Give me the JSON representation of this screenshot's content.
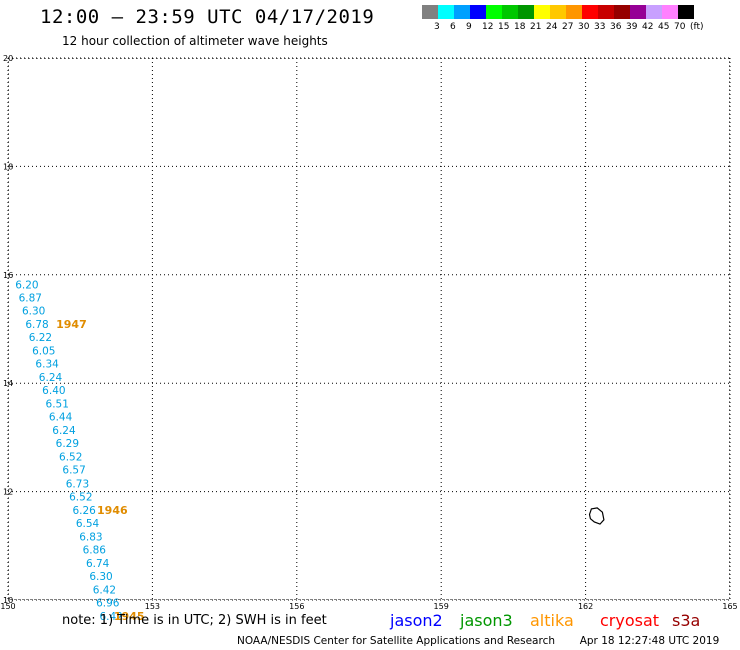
{
  "header": {
    "title": "12:00 – 23:59 UTC 04/17/2019",
    "subtitle": "12 hour collection of altimeter wave heights"
  },
  "color_scale": {
    "colors": [
      "#808080",
      "#00ffff",
      "#00a0ff",
      "#0000ff",
      "#00ff00",
      "#00c800",
      "#009600",
      "#ffff00",
      "#ffc800",
      "#ff9600",
      "#ff0000",
      "#c80000",
      "#960000",
      "#960096",
      "#c8a0ff",
      "#ff80ff",
      "#000000"
    ],
    "labels": [
      "3",
      "6",
      "9",
      "12",
      "15",
      "18",
      "21",
      "24",
      "27",
      "30",
      "33",
      "36",
      "39",
      "42",
      "45",
      "70",
      "(ft)"
    ]
  },
  "chart_data": {
    "type": "scatter",
    "x_ticks": [
      "150",
      "153",
      "156",
      "159",
      "162",
      "165"
    ],
    "y_ticks": [
      "10",
      "12",
      "14",
      "16",
      "18",
      "20"
    ],
    "xlim": [
      150,
      165
    ],
    "ylim": [
      10,
      20
    ],
    "grid": true,
    "swh_points": [
      {
        "label": "6.20",
        "lon": 150.15,
        "lat": 15.75
      },
      {
        "label": "6.87",
        "lon": 150.22,
        "lat": 15.51
      },
      {
        "label": "6.30",
        "lon": 150.29,
        "lat": 15.27
      },
      {
        "label": "6.78",
        "lon": 150.36,
        "lat": 15.02
      },
      {
        "label": "6.22",
        "lon": 150.43,
        "lat": 14.78
      },
      {
        "label": "6.05",
        "lon": 150.5,
        "lat": 14.53
      },
      {
        "label": "6.34",
        "lon": 150.57,
        "lat": 14.29
      },
      {
        "label": "6.24",
        "lon": 150.64,
        "lat": 14.04
      },
      {
        "label": "6.40",
        "lon": 150.71,
        "lat": 13.8
      },
      {
        "label": "6.51",
        "lon": 150.78,
        "lat": 13.55
      },
      {
        "label": "6.44",
        "lon": 150.85,
        "lat": 13.31
      },
      {
        "label": "6.24",
        "lon": 150.92,
        "lat": 13.06
      },
      {
        "label": "6.29",
        "lon": 150.99,
        "lat": 12.82
      },
      {
        "label": "6.52",
        "lon": 151.06,
        "lat": 12.57
      },
      {
        "label": "6.57",
        "lon": 151.13,
        "lat": 12.33
      },
      {
        "label": "6.73",
        "lon": 151.2,
        "lat": 12.08
      },
      {
        "label": "6.52",
        "lon": 151.27,
        "lat": 11.84
      },
      {
        "label": "6.26",
        "lon": 151.34,
        "lat": 11.59
      },
      {
        "label": "6.54",
        "lon": 151.41,
        "lat": 11.35
      },
      {
        "label": "6.83",
        "lon": 151.48,
        "lat": 11.1
      },
      {
        "label": "6.86",
        "lon": 151.55,
        "lat": 10.86
      },
      {
        "label": "6.74",
        "lon": 151.62,
        "lat": 10.61
      },
      {
        "label": "6.30",
        "lon": 151.69,
        "lat": 10.37
      },
      {
        "label": "6.42",
        "lon": 151.76,
        "lat": 10.12
      },
      {
        "label": "6.96",
        "lon": 151.83,
        "lat": 9.88
      },
      {
        "label": "6.42",
        "lon": 151.9,
        "lat": 9.63
      }
    ],
    "time_labels": [
      {
        "label": "1947",
        "lon": 151.0,
        "lat": 15.02
      },
      {
        "label": "1946",
        "lon": 151.85,
        "lat": 11.59
      },
      {
        "label": "1945",
        "lon": 152.2,
        "lat": 9.63
      }
    ],
    "island_outline": [
      [
        162.08,
        11.58
      ],
      [
        162.12,
        11.68
      ],
      [
        162.24,
        11.7
      ],
      [
        162.35,
        11.62
      ],
      [
        162.38,
        11.48
      ],
      [
        162.3,
        11.4
      ],
      [
        162.18,
        11.44
      ],
      [
        162.1,
        11.5
      ],
      [
        162.08,
        11.58
      ]
    ],
    "swh_color": "#00a0e0",
    "time_color": "#e08c00"
  },
  "legend": [
    {
      "label": "jason2",
      "color": "#0000ff"
    },
    {
      "label": "jason3",
      "color": "#009600"
    },
    {
      "label": "altika",
      "color": "#ff9600"
    },
    {
      "label": "cryosat",
      "color": "#ff0000"
    },
    {
      "label": "s3a",
      "color": "#960000"
    }
  ],
  "footer": {
    "note": "note: 1) Time is in UTC; 2) SWH is in feet",
    "credit": "NOAA/NESDIS Center for Satellite Applications and Research",
    "timestamp": "Apr 18 12:27:48 UTC 2019"
  }
}
